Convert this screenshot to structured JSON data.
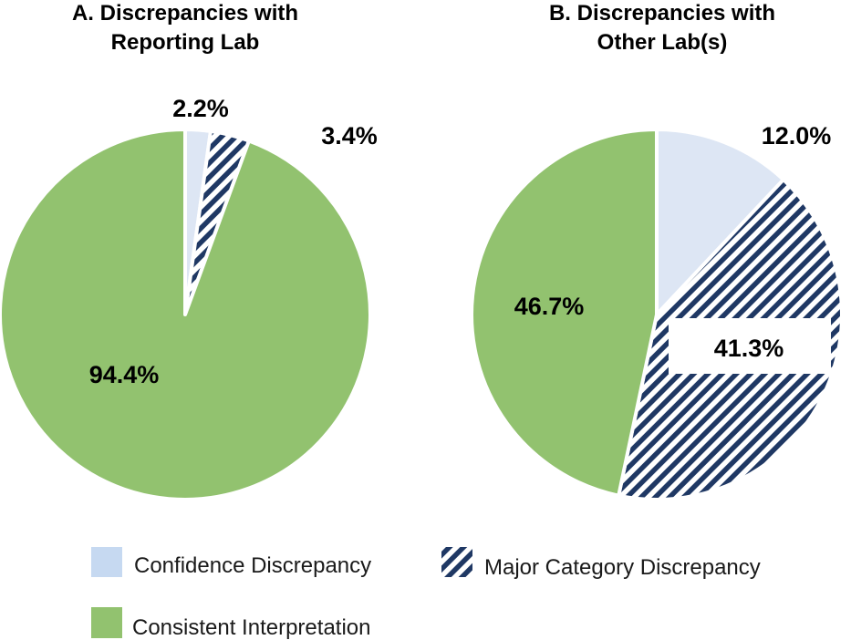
{
  "colors": {
    "confidence": "#dde6f4",
    "major": "#1f3864",
    "consistent": "#92c26f",
    "legend_confidence": "#c6d9f1"
  },
  "chart_data": [
    {
      "type": "pie",
      "title_lines": [
        "A.  Discrepancies with",
        "Reporting Lab"
      ],
      "slices": [
        {
          "key": "confidence",
          "label": "2.2%",
          "value": 2.2
        },
        {
          "key": "major",
          "label": "3.4%",
          "value": 3.4
        },
        {
          "key": "consistent",
          "label": "94.4%",
          "value": 94.4
        }
      ]
    },
    {
      "type": "pie",
      "title_lines": [
        "B.  Discrepancies with",
        "Other Lab(s)"
      ],
      "slices": [
        {
          "key": "confidence",
          "label": "12.0%",
          "value": 12.0
        },
        {
          "key": "major",
          "label": "41.3%",
          "value": 41.3
        },
        {
          "key": "consistent",
          "label": "46.7%",
          "value": 46.7
        }
      ]
    }
  ],
  "legend": [
    {
      "key": "confidence",
      "label": "Confidence Discrepancy"
    },
    {
      "key": "major",
      "label": "Major Category Discrepancy"
    },
    {
      "key": "consistent",
      "label": "Consistent Interpretation"
    }
  ]
}
